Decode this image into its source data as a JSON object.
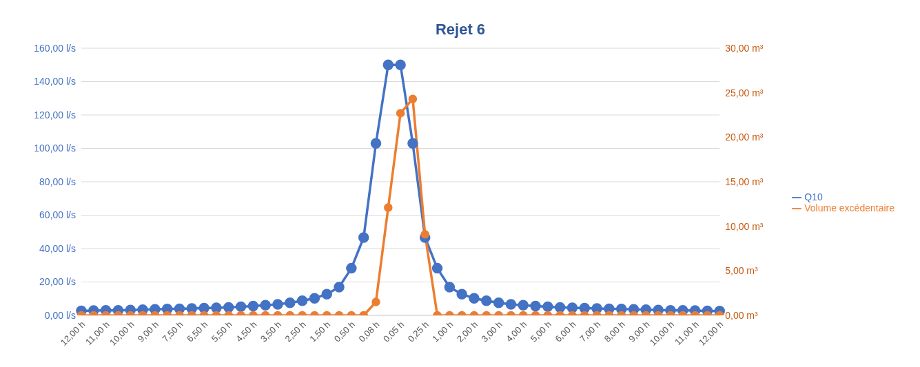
{
  "chart_data": {
    "type": "line",
    "title": "Rejet 6",
    "categories": [
      "12,00 h",
      null,
      "11,00 h",
      null,
      "10,00 h",
      null,
      "9,00 h",
      null,
      "7,50 h",
      null,
      "6,50 h",
      null,
      "5,50 h",
      null,
      "4,50 h",
      null,
      "3,50 h",
      null,
      "2,50 h",
      null,
      "1,50 h",
      null,
      "0,50 h",
      null,
      "0,08 h",
      null,
      "0,05 h",
      null,
      "0,25 h",
      null,
      "1,00 h",
      null,
      "2,00 h",
      null,
      "3,00 h",
      null,
      "4,00 h",
      null,
      "5,00 h",
      null,
      "6,00 h",
      null,
      "7,00 h",
      null,
      "8,00 h",
      null,
      "9,00 h",
      null,
      "10,00 h",
      null,
      "11,00 h",
      null,
      "12,00 h"
    ],
    "series": [
      {
        "name": "Q10",
        "color": "#4472c4",
        "values": [
          2.7,
          2.9,
          3.0,
          3.0,
          3.2,
          3.4,
          3.6,
          3.8,
          3.9,
          4.1,
          4.3,
          4.5,
          4.7,
          5.2,
          5.6,
          6.1,
          6.6,
          7.5,
          8.8,
          10.2,
          12.7,
          16.9,
          28.2,
          46.6,
          103,
          150,
          150,
          103,
          46.6,
          28.2,
          16.9,
          12.7,
          10.2,
          8.8,
          7.5,
          6.6,
          6.1,
          5.6,
          5.2,
          4.7,
          4.5,
          4.3,
          4.1,
          3.9,
          3.8,
          3.6,
          3.4,
          3.2,
          3.0,
          3.0,
          2.9,
          2.7,
          2.6
        ]
      },
      {
        "name": "Volume excédentaire",
        "color": "#ed7d31",
        "axis": "y2",
        "values": [
          0,
          0,
          0,
          0,
          0,
          0,
          0,
          0,
          0,
          0,
          0,
          0,
          0,
          0,
          0,
          0,
          0,
          0,
          0,
          0,
          0,
          0,
          0,
          0,
          1.5,
          12.1,
          22.7,
          24.3,
          9.1,
          0,
          0,
          0,
          0,
          0,
          0,
          0,
          0,
          0,
          0,
          0,
          0,
          0,
          0,
          0,
          0,
          0,
          0,
          0,
          0,
          0,
          0,
          0,
          0
        ]
      }
    ],
    "ylim": [
      0,
      160
    ],
    "yticks": [
      {
        "value": 0,
        "label": "0,00 l/s"
      },
      {
        "value": 20,
        "label": "20,00 l/s"
      },
      {
        "value": 40,
        "label": "40,00 l/s"
      },
      {
        "value": 60,
        "label": "60,00 l/s"
      },
      {
        "value": 80,
        "label": "80,00 l/s"
      },
      {
        "value": 100,
        "label": "100,00 l/s"
      },
      {
        "value": 120,
        "label": "120,00 l/s"
      },
      {
        "value": 140,
        "label": "140,00 l/s"
      },
      {
        "value": 160,
        "label": "160,00 l/s"
      }
    ],
    "y2lim": [
      0,
      30
    ],
    "y2ticks": [
      {
        "value": 0,
        "label": "0,00 m³"
      },
      {
        "value": 5,
        "label": "5,00 m³"
      },
      {
        "value": 10,
        "label": "10,00 m³"
      },
      {
        "value": 15,
        "label": "15,00 m³"
      },
      {
        "value": 20,
        "label": "20,00 m³"
      },
      {
        "value": 25,
        "label": "25,00 m³"
      },
      {
        "value": 30,
        "label": "30,00 m³"
      }
    ],
    "grid": "y",
    "legend": "right",
    "marker": "circle",
    "line_style": "solid"
  }
}
